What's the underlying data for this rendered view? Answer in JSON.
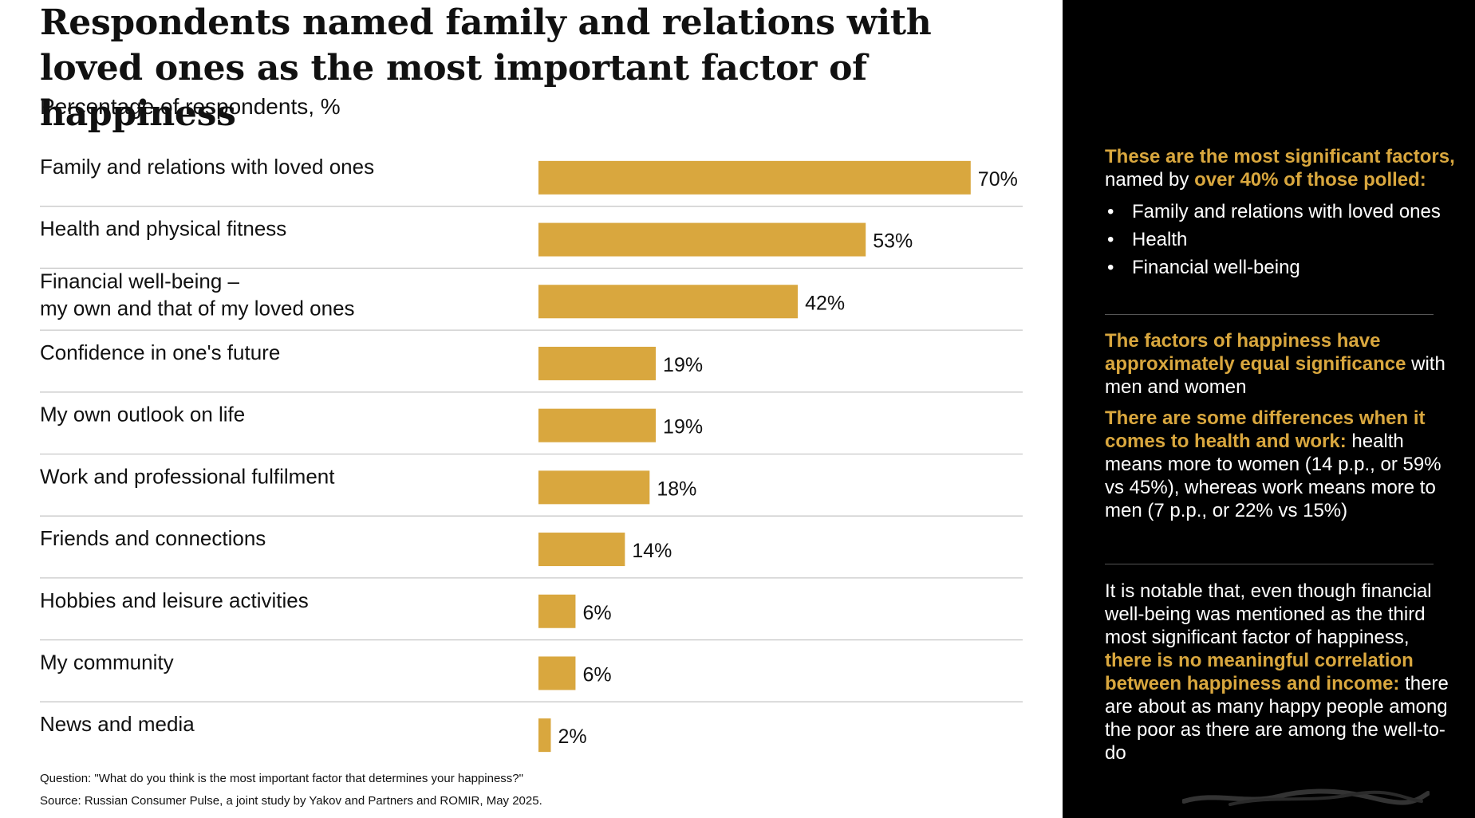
{
  "title": "Respondents named family and relations with loved ones as the most important factor of happiness",
  "subtitle": "Percentage of respondents, %",
  "chart_data": {
    "type": "bar",
    "orientation": "horizontal",
    "categories": [
      "Family and relations with loved ones",
      "Health and physical fitness",
      "Financial well-being –\nmy own and that of my loved ones",
      "Confidence in one's future",
      "My own outlook on life",
      "Work and professional fulfilment",
      "Friends and connections",
      "Hobbies and leisure activities",
      "My community",
      "News and media"
    ],
    "values": [
      70,
      53,
      42,
      19,
      19,
      18,
      14,
      6,
      6,
      2
    ],
    "value_labels": [
      "70%",
      "53%",
      "42%",
      "19%",
      "19%",
      "18%",
      "14%",
      "6%",
      "6%",
      "2%"
    ],
    "unit": "%",
    "color": "#d9a73e"
  },
  "footnote": {
    "question": "Question: \"What do you think is the most important factor that determines your happiness?\"",
    "source": "Source: Russian Consumer Pulse, a joint study by Yakov and Partners and ROMIR, May 2025."
  },
  "sidebar": {
    "block1": {
      "lead_gold": "These are the most significant factors,",
      "lead_white": "named by ",
      "lead_gold2": "over 40% of those polled:",
      "bullets": [
        "Family and relations with loved ones",
        "Health",
        "Financial well-being"
      ],
      "bullet_glyph": "•"
    },
    "block2": {
      "gold": "The factors of happiness have approximately equal significance",
      "white": " with men and women"
    },
    "block3": {
      "gold": "There are some differences when it comes to health and work:",
      "white": " health means more to women (14 p.p., or 59% vs 45%), whereas work means more to men (7 p.p., or 22% vs 15%)"
    },
    "block4": {
      "white1": "It is notable that, even though financial well-being was mentioned as the third most significant factor of happiness, ",
      "gold": "there is no meaningful correlation between happiness and income:",
      "white2": " there are about as many happy people among the poor as there are among the well-to-do"
    }
  },
  "colors": {
    "accent": "#d9a73e",
    "panel_bg": "#000000",
    "divider": "#c8c8c8"
  }
}
